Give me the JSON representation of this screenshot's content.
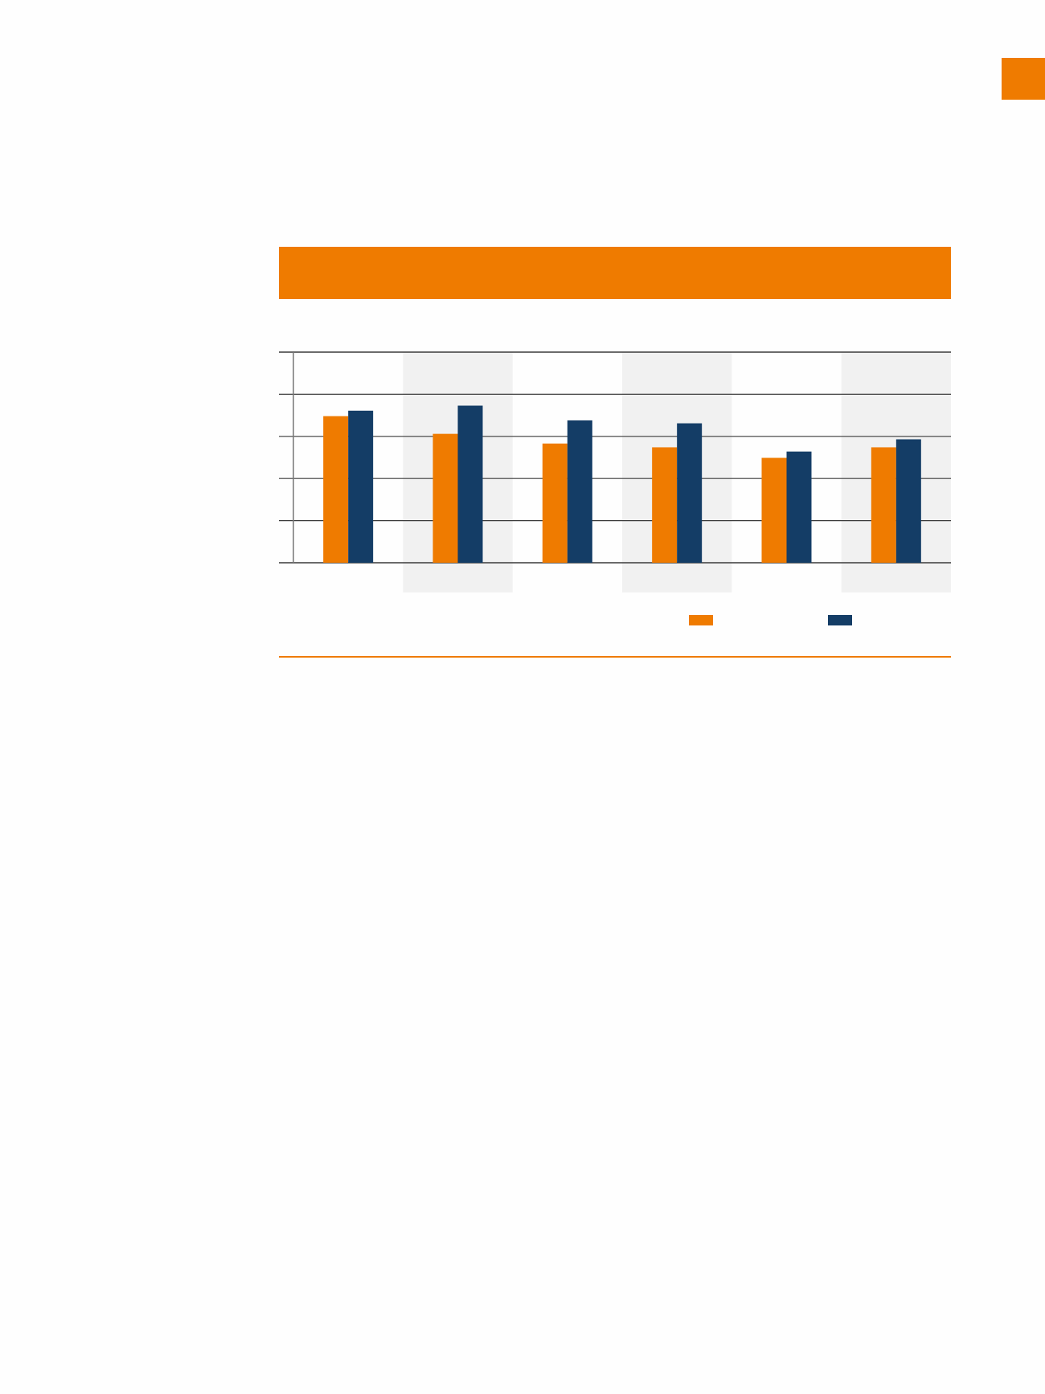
{
  "colors": {
    "accent": "#ef7b00",
    "series_a": "#ef7b00",
    "series_b": "#143d66",
    "band": "#f1f1f1",
    "grid": "#3a3a3a"
  },
  "chart_data": {
    "type": "bar",
    "title": "",
    "xlabel": "",
    "ylabel": "",
    "categories": [
      "",
      "",
      "",
      "",
      "",
      ""
    ],
    "ylim": [
      0,
      5
    ],
    "grid": true,
    "legend": "bottom-right",
    "series": [
      {
        "values": [
          3.48,
          3.06,
          2.83,
          2.74,
          2.49,
          2.74
        ]
      },
      {
        "values": [
          3.61,
          3.73,
          3.38,
          3.31,
          2.64,
          2.93
        ]
      }
    ]
  }
}
